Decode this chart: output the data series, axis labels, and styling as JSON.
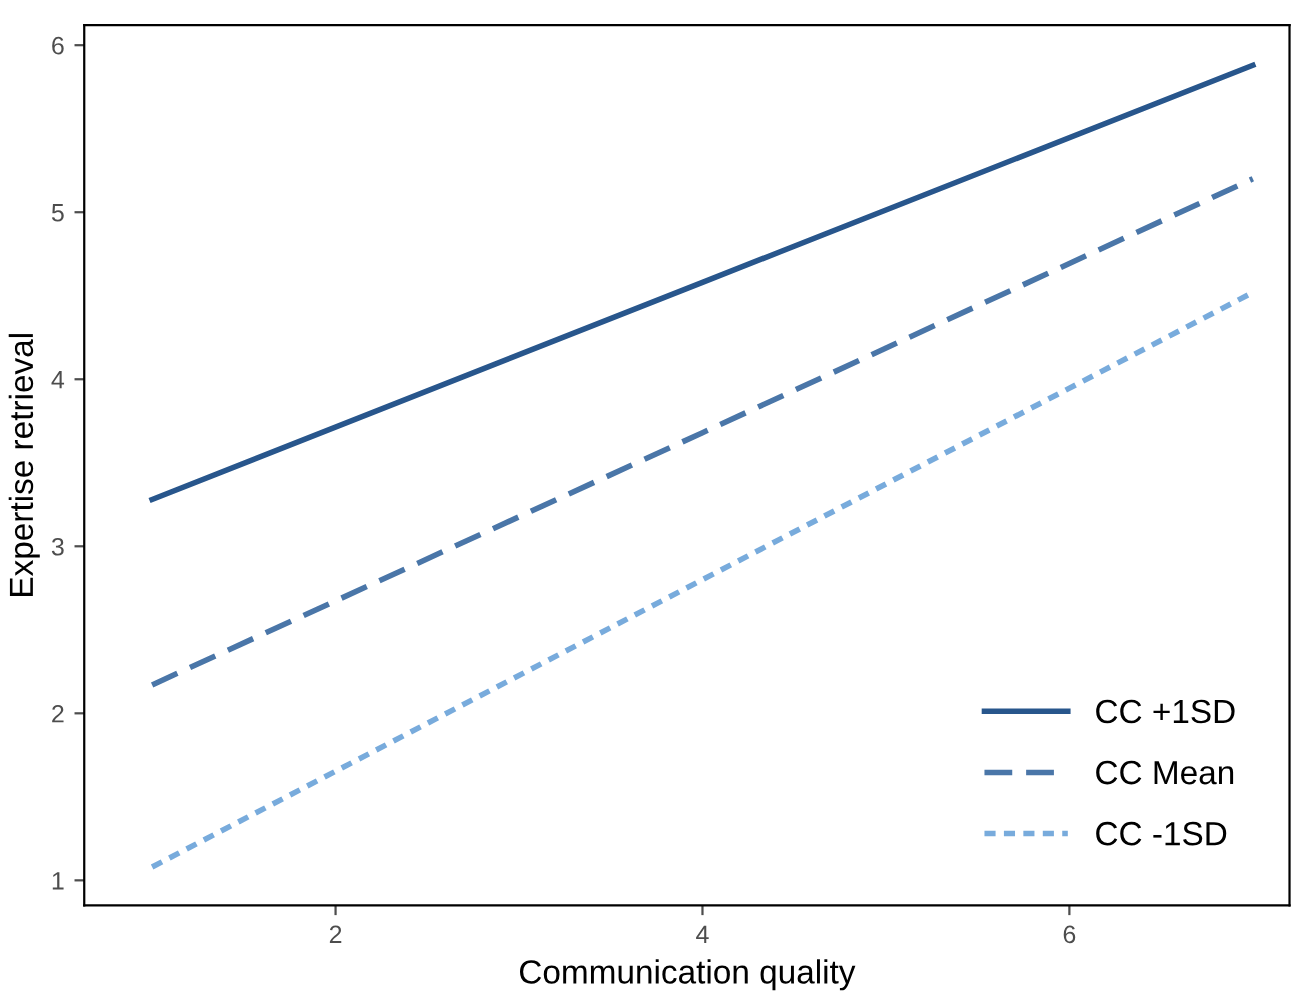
{
  "chart_data": {
    "type": "line",
    "xlabel": "Communication quality",
    "ylabel": "Expertise retrieval",
    "x": [
      1,
      4,
      7
    ],
    "series": [
      {
        "name": "CC +1SD",
        "color": "#28568c",
        "values": [
          3.28,
          4.58,
          5.88
        ],
        "line_style": "solid"
      },
      {
        "name": "CC Mean",
        "color": "#4a76a8",
        "values": [
          2.17,
          3.68,
          5.2
        ],
        "line_style": "dashed"
      },
      {
        "name": "CC -1SD",
        "color": "#78abdc",
        "values": [
          1.08,
          2.8,
          4.52
        ],
        "line_style": "dotted"
      }
    ],
    "xlim": [
      0.63,
      7.2
    ],
    "ylim": [
      0.85,
      6.12
    ],
    "xticks": [
      2,
      4,
      6
    ],
    "yticks": [
      1,
      2,
      3,
      4,
      5,
      6
    ],
    "grid": false,
    "legend": "bottom right"
  }
}
